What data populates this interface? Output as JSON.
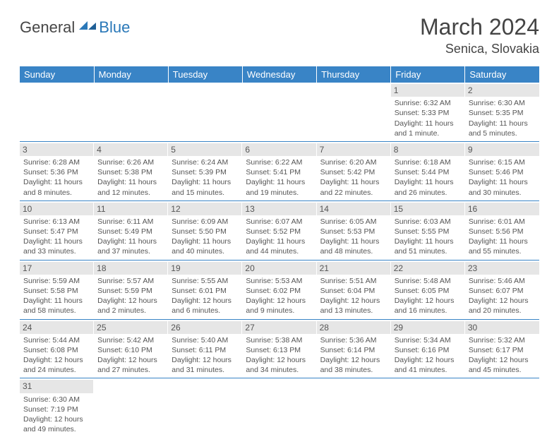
{
  "logo": {
    "general": "General",
    "blue": "Blue"
  },
  "title": "March 2024",
  "location": "Senica, Slovakia",
  "colors": {
    "header_bg": "#3984c6",
    "header_text": "#ffffff",
    "daynum_bg": "#e6e6e6",
    "border": "#3984c6",
    "text": "#555555",
    "logo_gray": "#464646",
    "logo_blue": "#2a78b8"
  },
  "weekdays": [
    "Sunday",
    "Monday",
    "Tuesday",
    "Wednesday",
    "Thursday",
    "Friday",
    "Saturday"
  ],
  "weeks": [
    [
      null,
      null,
      null,
      null,
      null,
      {
        "n": "1",
        "sr": "Sunrise: 6:32 AM",
        "ss": "Sunset: 5:33 PM",
        "dl1": "Daylight: 11 hours",
        "dl2": "and 1 minute."
      },
      {
        "n": "2",
        "sr": "Sunrise: 6:30 AM",
        "ss": "Sunset: 5:35 PM",
        "dl1": "Daylight: 11 hours",
        "dl2": "and 5 minutes."
      }
    ],
    [
      {
        "n": "3",
        "sr": "Sunrise: 6:28 AM",
        "ss": "Sunset: 5:36 PM",
        "dl1": "Daylight: 11 hours",
        "dl2": "and 8 minutes."
      },
      {
        "n": "4",
        "sr": "Sunrise: 6:26 AM",
        "ss": "Sunset: 5:38 PM",
        "dl1": "Daylight: 11 hours",
        "dl2": "and 12 minutes."
      },
      {
        "n": "5",
        "sr": "Sunrise: 6:24 AM",
        "ss": "Sunset: 5:39 PM",
        "dl1": "Daylight: 11 hours",
        "dl2": "and 15 minutes."
      },
      {
        "n": "6",
        "sr": "Sunrise: 6:22 AM",
        "ss": "Sunset: 5:41 PM",
        "dl1": "Daylight: 11 hours",
        "dl2": "and 19 minutes."
      },
      {
        "n": "7",
        "sr": "Sunrise: 6:20 AM",
        "ss": "Sunset: 5:42 PM",
        "dl1": "Daylight: 11 hours",
        "dl2": "and 22 minutes."
      },
      {
        "n": "8",
        "sr": "Sunrise: 6:18 AM",
        "ss": "Sunset: 5:44 PM",
        "dl1": "Daylight: 11 hours",
        "dl2": "and 26 minutes."
      },
      {
        "n": "9",
        "sr": "Sunrise: 6:15 AM",
        "ss": "Sunset: 5:46 PM",
        "dl1": "Daylight: 11 hours",
        "dl2": "and 30 minutes."
      }
    ],
    [
      {
        "n": "10",
        "sr": "Sunrise: 6:13 AM",
        "ss": "Sunset: 5:47 PM",
        "dl1": "Daylight: 11 hours",
        "dl2": "and 33 minutes."
      },
      {
        "n": "11",
        "sr": "Sunrise: 6:11 AM",
        "ss": "Sunset: 5:49 PM",
        "dl1": "Daylight: 11 hours",
        "dl2": "and 37 minutes."
      },
      {
        "n": "12",
        "sr": "Sunrise: 6:09 AM",
        "ss": "Sunset: 5:50 PM",
        "dl1": "Daylight: 11 hours",
        "dl2": "and 40 minutes."
      },
      {
        "n": "13",
        "sr": "Sunrise: 6:07 AM",
        "ss": "Sunset: 5:52 PM",
        "dl1": "Daylight: 11 hours",
        "dl2": "and 44 minutes."
      },
      {
        "n": "14",
        "sr": "Sunrise: 6:05 AM",
        "ss": "Sunset: 5:53 PM",
        "dl1": "Daylight: 11 hours",
        "dl2": "and 48 minutes."
      },
      {
        "n": "15",
        "sr": "Sunrise: 6:03 AM",
        "ss": "Sunset: 5:55 PM",
        "dl1": "Daylight: 11 hours",
        "dl2": "and 51 minutes."
      },
      {
        "n": "16",
        "sr": "Sunrise: 6:01 AM",
        "ss": "Sunset: 5:56 PM",
        "dl1": "Daylight: 11 hours",
        "dl2": "and 55 minutes."
      }
    ],
    [
      {
        "n": "17",
        "sr": "Sunrise: 5:59 AM",
        "ss": "Sunset: 5:58 PM",
        "dl1": "Daylight: 11 hours",
        "dl2": "and 58 minutes."
      },
      {
        "n": "18",
        "sr": "Sunrise: 5:57 AM",
        "ss": "Sunset: 5:59 PM",
        "dl1": "Daylight: 12 hours",
        "dl2": "and 2 minutes."
      },
      {
        "n": "19",
        "sr": "Sunrise: 5:55 AM",
        "ss": "Sunset: 6:01 PM",
        "dl1": "Daylight: 12 hours",
        "dl2": "and 6 minutes."
      },
      {
        "n": "20",
        "sr": "Sunrise: 5:53 AM",
        "ss": "Sunset: 6:02 PM",
        "dl1": "Daylight: 12 hours",
        "dl2": "and 9 minutes."
      },
      {
        "n": "21",
        "sr": "Sunrise: 5:51 AM",
        "ss": "Sunset: 6:04 PM",
        "dl1": "Daylight: 12 hours",
        "dl2": "and 13 minutes."
      },
      {
        "n": "22",
        "sr": "Sunrise: 5:48 AM",
        "ss": "Sunset: 6:05 PM",
        "dl1": "Daylight: 12 hours",
        "dl2": "and 16 minutes."
      },
      {
        "n": "23",
        "sr": "Sunrise: 5:46 AM",
        "ss": "Sunset: 6:07 PM",
        "dl1": "Daylight: 12 hours",
        "dl2": "and 20 minutes."
      }
    ],
    [
      {
        "n": "24",
        "sr": "Sunrise: 5:44 AM",
        "ss": "Sunset: 6:08 PM",
        "dl1": "Daylight: 12 hours",
        "dl2": "and 24 minutes."
      },
      {
        "n": "25",
        "sr": "Sunrise: 5:42 AM",
        "ss": "Sunset: 6:10 PM",
        "dl1": "Daylight: 12 hours",
        "dl2": "and 27 minutes."
      },
      {
        "n": "26",
        "sr": "Sunrise: 5:40 AM",
        "ss": "Sunset: 6:11 PM",
        "dl1": "Daylight: 12 hours",
        "dl2": "and 31 minutes."
      },
      {
        "n": "27",
        "sr": "Sunrise: 5:38 AM",
        "ss": "Sunset: 6:13 PM",
        "dl1": "Daylight: 12 hours",
        "dl2": "and 34 minutes."
      },
      {
        "n": "28",
        "sr": "Sunrise: 5:36 AM",
        "ss": "Sunset: 6:14 PM",
        "dl1": "Daylight: 12 hours",
        "dl2": "and 38 minutes."
      },
      {
        "n": "29",
        "sr": "Sunrise: 5:34 AM",
        "ss": "Sunset: 6:16 PM",
        "dl1": "Daylight: 12 hours",
        "dl2": "and 41 minutes."
      },
      {
        "n": "30",
        "sr": "Sunrise: 5:32 AM",
        "ss": "Sunset: 6:17 PM",
        "dl1": "Daylight: 12 hours",
        "dl2": "and 45 minutes."
      }
    ],
    [
      {
        "n": "31",
        "sr": "Sunrise: 6:30 AM",
        "ss": "Sunset: 7:19 PM",
        "dl1": "Daylight: 12 hours",
        "dl2": "and 49 minutes."
      },
      null,
      null,
      null,
      null,
      null,
      null
    ]
  ]
}
